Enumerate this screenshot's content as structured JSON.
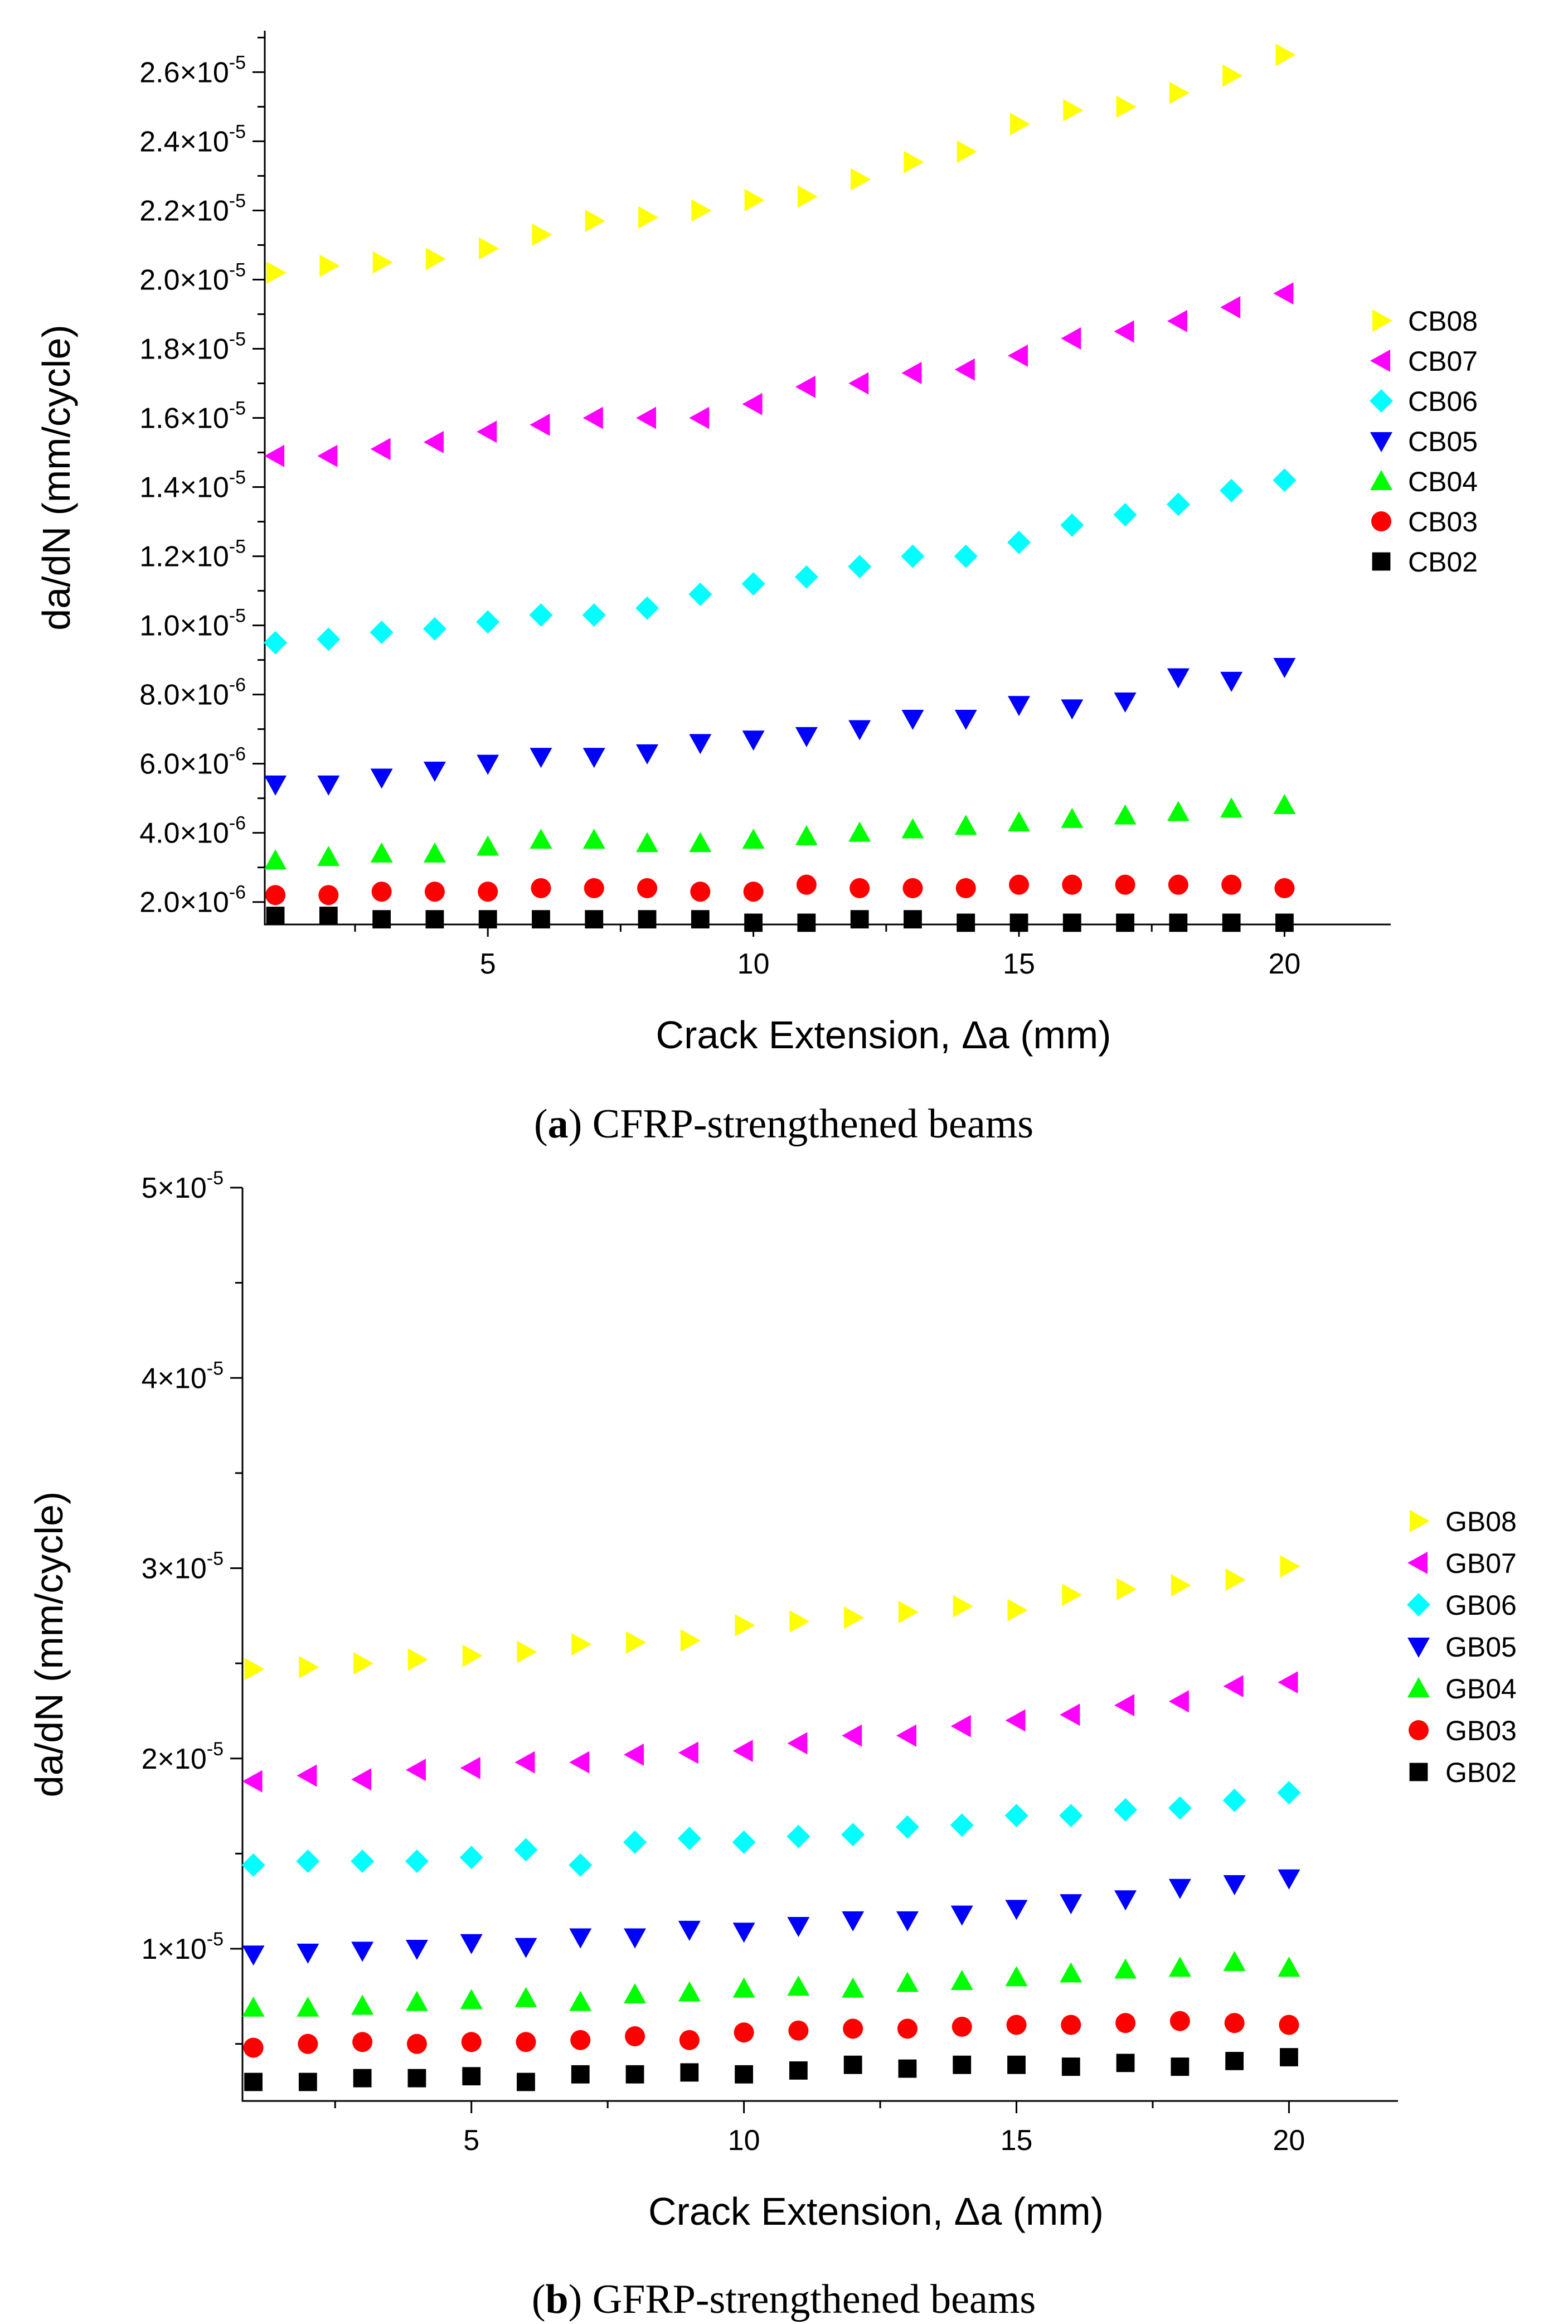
{
  "chart_data": [
    {
      "type": "scatter",
      "caption": {
        "letter": "a",
        "text": "CFRP-strengthened beams"
      },
      "xlabel": "Crack Extension, Δa (mm)",
      "ylabel": "da/dN (mm/cycle)",
      "xlim": [
        0.8,
        22
      ],
      "ylim": [
        1.35e-06,
        2.72e-05
      ],
      "xticks": [
        5,
        10,
        15,
        20
      ],
      "yticks": [
        2e-06,
        4e-06,
        6e-06,
        8e-06,
        1e-05,
        1.2e-05,
        1.4e-05,
        1.6e-05,
        1.8e-05,
        2e-05,
        2.2e-05,
        2.4e-05,
        2.6e-05
      ],
      "yticklabels": [
        {
          "m": "2.0×10",
          "e": "-6"
        },
        {
          "m": "4.0×10",
          "e": "-6"
        },
        {
          "m": "6.0×10",
          "e": "-6"
        },
        {
          "m": "8.0×10",
          "e": "-6"
        },
        {
          "m": "1.0×10",
          "e": "-5"
        },
        {
          "m": "1.2×10",
          "e": "-5"
        },
        {
          "m": "1.4×10",
          "e": "-5"
        },
        {
          "m": "1.6×10",
          "e": "-5"
        },
        {
          "m": "1.8×10",
          "e": "-5"
        },
        {
          "m": "2.0×10",
          "e": "-5"
        },
        {
          "m": "2.2×10",
          "e": "-5"
        },
        {
          "m": "2.4×10",
          "e": "-5"
        },
        {
          "m": "2.6×10",
          "e": "-5"
        }
      ],
      "legend_position": "right",
      "x": [
        1,
        2,
        3,
        4,
        5,
        6,
        7,
        8,
        9,
        10,
        11,
        12,
        13,
        14,
        15,
        16,
        17,
        18,
        19,
        20
      ],
      "series": [
        {
          "name": "CB08",
          "color": "#FFFF00",
          "marker": "triangle-right",
          "values": [
            2.02e-05,
            2.04e-05,
            2.05e-05,
            2.06e-05,
            2.09e-05,
            2.13e-05,
            2.17e-05,
            2.18e-05,
            2.2e-05,
            2.23e-05,
            2.24e-05,
            2.29e-05,
            2.34e-05,
            2.37e-05,
            2.45e-05,
            2.49e-05,
            2.5e-05,
            2.54e-05,
            2.59e-05,
            2.65e-05
          ]
        },
        {
          "name": "CB07",
          "color": "#FF00FF",
          "marker": "triangle-left",
          "values": [
            1.49e-05,
            1.49e-05,
            1.51e-05,
            1.53e-05,
            1.56e-05,
            1.58e-05,
            1.6e-05,
            1.6e-05,
            1.6e-05,
            1.64e-05,
            1.69e-05,
            1.7e-05,
            1.73e-05,
            1.74e-05,
            1.78e-05,
            1.83e-05,
            1.85e-05,
            1.88e-05,
            1.92e-05,
            1.96e-05
          ]
        },
        {
          "name": "CB06",
          "color": "#00FFFF",
          "marker": "diamond",
          "values": [
            9.5e-06,
            9.6e-06,
            9.8e-06,
            9.9e-06,
            1.01e-05,
            1.03e-05,
            1.03e-05,
            1.05e-05,
            1.09e-05,
            1.12e-05,
            1.14e-05,
            1.17e-05,
            1.2e-05,
            1.2e-05,
            1.24e-05,
            1.29e-05,
            1.32e-05,
            1.35e-05,
            1.39e-05,
            1.42e-05
          ]
        },
        {
          "name": "CB05",
          "color": "#0000FF",
          "marker": "triangle-down",
          "values": [
            5.4e-06,
            5.4e-06,
            5.6e-06,
            5.8e-06,
            6e-06,
            6.2e-06,
            6.2e-06,
            6.3e-06,
            6.6e-06,
            6.7e-06,
            6.8e-06,
            7e-06,
            7.3e-06,
            7.3e-06,
            7.7e-06,
            7.6e-06,
            7.8e-06,
            8.5e-06,
            8.4e-06,
            8.8e-06
          ]
        },
        {
          "name": "CB04",
          "color": "#00FF00",
          "marker": "triangle-up",
          "values": [
            3.2e-06,
            3.3e-06,
            3.4e-06,
            3.4e-06,
            3.6e-06,
            3.8e-06,
            3.8e-06,
            3.7e-06,
            3.7e-06,
            3.8e-06,
            3.9e-06,
            4e-06,
            4.1e-06,
            4.2e-06,
            4.3e-06,
            4.4e-06,
            4.5e-06,
            4.6e-06,
            4.7e-06,
            4.8e-06
          ]
        },
        {
          "name": "CB03",
          "color": "#FF0000",
          "marker": "circle",
          "values": [
            2.2e-06,
            2.2e-06,
            2.3e-06,
            2.3e-06,
            2.3e-06,
            2.4e-06,
            2.4e-06,
            2.4e-06,
            2.3e-06,
            2.3e-06,
            2.5e-06,
            2.4e-06,
            2.4e-06,
            2.4e-06,
            2.5e-06,
            2.5e-06,
            2.5e-06,
            2.5e-06,
            2.5e-06,
            2.4e-06
          ]
        },
        {
          "name": "CB02",
          "color": "#000000",
          "marker": "square",
          "values": [
            1.6e-06,
            1.6e-06,
            1.5e-06,
            1.5e-06,
            1.5e-06,
            1.5e-06,
            1.5e-06,
            1.5e-06,
            1.5e-06,
            1.4e-06,
            1.4e-06,
            1.5e-06,
            1.5e-06,
            1.4e-06,
            1.4e-06,
            1.4e-06,
            1.4e-06,
            1.4e-06,
            1.4e-06,
            1.4e-06
          ]
        }
      ]
    },
    {
      "type": "scatter",
      "caption": {
        "letter": "b",
        "text": "GFRP-strengthened beams"
      },
      "xlabel": "Crack Extension, Δa (mm)",
      "ylabel": "da/dN (mm/cycle)",
      "xlim": [
        0.8,
        22
      ],
      "ylim": [
        2e-06,
        5e-05
      ],
      "xticks": [
        5,
        10,
        15,
        20
      ],
      "yticks": [
        1e-05,
        2e-05,
        3e-05,
        4e-05,
        5e-05
      ],
      "yticklabels": [
        {
          "m": "1×10",
          "e": "-5"
        },
        {
          "m": "2×10",
          "e": "-5"
        },
        {
          "m": "3×10",
          "e": "-5"
        },
        {
          "m": "4×10",
          "e": "-5"
        },
        {
          "m": "5×10",
          "e": "-5"
        }
      ],
      "legend_position": "right",
      "x": [
        1,
        2,
        3,
        4,
        5,
        6,
        7,
        8,
        9,
        10,
        11,
        12,
        13,
        14,
        15,
        16,
        17,
        18,
        19,
        20
      ],
      "series": [
        {
          "name": "GB08",
          "color": "#FFFF00",
          "marker": "triangle-right",
          "values": [
            2.47e-05,
            2.48e-05,
            2.5e-05,
            2.52e-05,
            2.54e-05,
            2.56e-05,
            2.6e-05,
            2.61e-05,
            2.62e-05,
            2.7e-05,
            2.72e-05,
            2.74e-05,
            2.77e-05,
            2.8e-05,
            2.78e-05,
            2.86e-05,
            2.89e-05,
            2.91e-05,
            2.94e-05,
            3.01e-05
          ]
        },
        {
          "name": "GB07",
          "color": "#FF00FF",
          "marker": "triangle-left",
          "values": [
            1.88e-05,
            1.91e-05,
            1.89e-05,
            1.94e-05,
            1.95e-05,
            1.98e-05,
            1.98e-05,
            2.02e-05,
            2.03e-05,
            2.04e-05,
            2.08e-05,
            2.12e-05,
            2.12e-05,
            2.17e-05,
            2.2e-05,
            2.23e-05,
            2.28e-05,
            2.3e-05,
            2.38e-05,
            2.4e-05
          ]
        },
        {
          "name": "GB06",
          "color": "#00FFFF",
          "marker": "diamond",
          "values": [
            1.44e-05,
            1.46e-05,
            1.46e-05,
            1.46e-05,
            1.48e-05,
            1.52e-05,
            1.44e-05,
            1.56e-05,
            1.58e-05,
            1.56e-05,
            1.59e-05,
            1.6e-05,
            1.64e-05,
            1.65e-05,
            1.7e-05,
            1.7e-05,
            1.73e-05,
            1.74e-05,
            1.78e-05,
            1.82e-05
          ]
        },
        {
          "name": "GB05",
          "color": "#0000FF",
          "marker": "triangle-down",
          "values": [
            9.7e-06,
            9.8e-06,
            9.9e-06,
            1e-05,
            1.03e-05,
            1.01e-05,
            1.06e-05,
            1.06e-05,
            1.1e-05,
            1.09e-05,
            1.12e-05,
            1.15e-05,
            1.15e-05,
            1.18e-05,
            1.21e-05,
            1.24e-05,
            1.26e-05,
            1.32e-05,
            1.34e-05,
            1.37e-05
          ]
        },
        {
          "name": "GB04",
          "color": "#00FF00",
          "marker": "triangle-up",
          "values": [
            6.9e-06,
            6.9e-06,
            7e-06,
            7.2e-06,
            7.3e-06,
            7.4e-06,
            7.2e-06,
            7.6e-06,
            7.7e-06,
            7.9e-06,
            8e-06,
            7.9e-06,
            8.2e-06,
            8.3e-06,
            8.5e-06,
            8.7e-06,
            8.9e-06,
            9e-06,
            9.3e-06,
            9e-06
          ]
        },
        {
          "name": "GB03",
          "color": "#FF0000",
          "marker": "circle",
          "values": [
            4.8e-06,
            5e-06,
            5.1e-06,
            5e-06,
            5.1e-06,
            5.1e-06,
            5.2e-06,
            5.4e-06,
            5.2e-06,
            5.6e-06,
            5.7e-06,
            5.8e-06,
            5.8e-06,
            5.9e-06,
            6e-06,
            6e-06,
            6.1e-06,
            6.2e-06,
            6.1e-06,
            6e-06
          ]
        },
        {
          "name": "GB02",
          "color": "#000000",
          "marker": "square",
          "values": [
            3e-06,
            3e-06,
            3.2e-06,
            3.2e-06,
            3.3e-06,
            3e-06,
            3.4e-06,
            3.4e-06,
            3.5e-06,
            3.4e-06,
            3.6e-06,
            3.9e-06,
            3.7e-06,
            3.9e-06,
            3.9e-06,
            3.8e-06,
            4e-06,
            3.8e-06,
            4.1e-06,
            4.3e-06
          ]
        }
      ]
    }
  ]
}
